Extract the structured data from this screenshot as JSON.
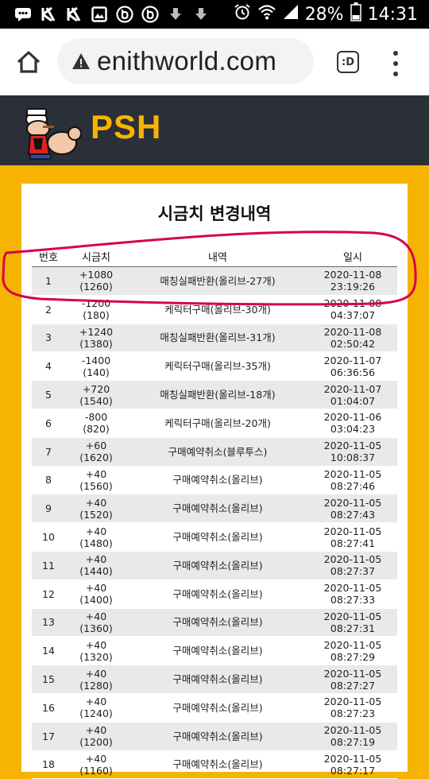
{
  "status_bar": {
    "battery": "28%",
    "time": "14:31",
    "icons": [
      "chat-icon",
      "k-icon",
      "k-icon",
      "image-icon",
      "b-icon",
      "b-icon",
      "download-icon",
      "download-icon",
      "alarm-icon",
      "wifi-icon",
      "signal-icon",
      "battery-icon"
    ]
  },
  "browser": {
    "url": "enithworld.com",
    "tab_label": ":D"
  },
  "site": {
    "logo_text": "PSH",
    "accent": "#f7b500"
  },
  "page": {
    "title": "시금치 변경내역",
    "headers": {
      "no": "번호",
      "amount": "시금치",
      "desc": "내역",
      "date": "일시"
    },
    "rows": [
      {
        "no": "1",
        "change": "+1080",
        "balance": "(1260)",
        "desc": "매칭실패반환(올리브-27개)",
        "date": "2020-11-08",
        "time": "23:19:26"
      },
      {
        "no": "2",
        "change": "-1200",
        "balance": "(180)",
        "desc": "케릭터구매(올리브-30개)",
        "date": "2020-11-08",
        "time": "04:37:07"
      },
      {
        "no": "3",
        "change": "+1240",
        "balance": "(1380)",
        "desc": "매칭실패반환(올리브-31개)",
        "date": "2020-11-08",
        "time": "02:50:42"
      },
      {
        "no": "4",
        "change": "-1400",
        "balance": "(140)",
        "desc": "케릭터구매(올리브-35개)",
        "date": "2020-11-07",
        "time": "06:36:56"
      },
      {
        "no": "5",
        "change": "+720",
        "balance": "(1540)",
        "desc": "매칭실패반환(올리브-18개)",
        "date": "2020-11-07",
        "time": "01:04:07"
      },
      {
        "no": "6",
        "change": "-800",
        "balance": "(820)",
        "desc": "케릭터구매(올리브-20개)",
        "date": "2020-11-06",
        "time": "03:04:23"
      },
      {
        "no": "7",
        "change": "+60",
        "balance": "(1620)",
        "desc": "구매예약취소(블루투스)",
        "date": "2020-11-05",
        "time": "10:08:37"
      },
      {
        "no": "8",
        "change": "+40",
        "balance": "(1560)",
        "desc": "구매예약취소(올리브)",
        "date": "2020-11-05",
        "time": "08:27:46"
      },
      {
        "no": "9",
        "change": "+40",
        "balance": "(1520)",
        "desc": "구매예약취소(올리브)",
        "date": "2020-11-05",
        "time": "08:27:43"
      },
      {
        "no": "10",
        "change": "+40",
        "balance": "(1480)",
        "desc": "구매예약취소(올리브)",
        "date": "2020-11-05",
        "time": "08:27:41"
      },
      {
        "no": "11",
        "change": "+40",
        "balance": "(1440)",
        "desc": "구매예약취소(올리브)",
        "date": "2020-11-05",
        "time": "08:27:37"
      },
      {
        "no": "12",
        "change": "+40",
        "balance": "(1400)",
        "desc": "구매예약취소(올리브)",
        "date": "2020-11-05",
        "time": "08:27:33"
      },
      {
        "no": "13",
        "change": "+40",
        "balance": "(1360)",
        "desc": "구매예약취소(올리브)",
        "date": "2020-11-05",
        "time": "08:27:31"
      },
      {
        "no": "14",
        "change": "+40",
        "balance": "(1320)",
        "desc": "구매예약취소(올리브)",
        "date": "2020-11-05",
        "time": "08:27:29"
      },
      {
        "no": "15",
        "change": "+40",
        "balance": "(1280)",
        "desc": "구매예약취소(올리브)",
        "date": "2020-11-05",
        "time": "08:27:27"
      },
      {
        "no": "16",
        "change": "+40",
        "balance": "(1240)",
        "desc": "구매예약취소(올리브)",
        "date": "2020-11-05",
        "time": "08:27:23"
      },
      {
        "no": "17",
        "change": "+40",
        "balance": "(1200)",
        "desc": "구매예약취소(올리브)",
        "date": "2020-11-05",
        "time": "08:27:19"
      },
      {
        "no": "18",
        "change": "+40",
        "balance": "(1160)",
        "desc": "구매예약취소(올리브)",
        "date": "2020-11-05",
        "time": "08:27:17"
      }
    ]
  }
}
